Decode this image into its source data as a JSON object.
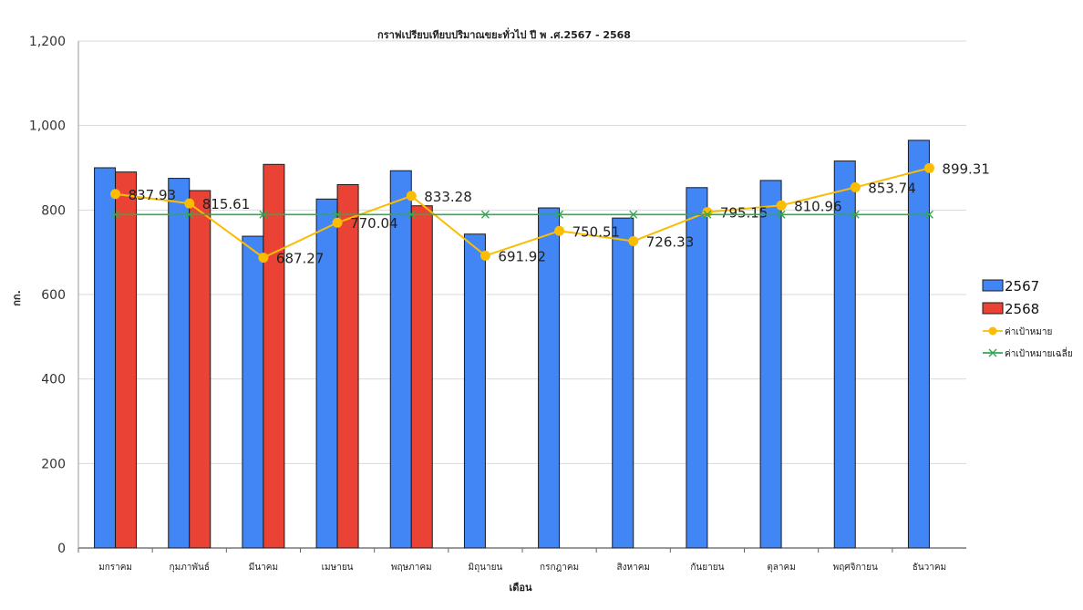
{
  "chart_data": {
    "type": "bar",
    "title": "กราฟเปรียบเทียบปริมาณขยะทั่วไป ปี พ .ศ.2567 - 2568",
    "xlabel": "เดือน",
    "ylabel": "กก.",
    "ylim": [
      0,
      1200
    ],
    "yticks": [
      "0",
      "200",
      "400",
      "600",
      "800",
      "1,000",
      "1,200"
    ],
    "ytick_values": [
      0,
      200,
      400,
      600,
      800,
      1000,
      1200
    ],
    "grid": true,
    "legend_position": "right",
    "categories": [
      "มกราคม",
      "กุมภาพันธ์",
      "มีนาคม",
      "เมษายน",
      "พฤษภาคม",
      "มิถุนายน",
      "กรกฎาคม",
      "สิงหาคม",
      "กันยายน",
      "ตุลาคม",
      "พฤศจิกายน",
      "ธันวาคม"
    ],
    "series": [
      {
        "name": "2567",
        "type": "bar",
        "color": "#4285f4",
        "values": [
          900,
          875,
          738,
          826,
          893,
          743,
          805,
          781,
          853,
          870,
          916,
          965
        ]
      },
      {
        "name": "2568",
        "type": "bar",
        "color": "#ea4335",
        "values": [
          890,
          846,
          908,
          860,
          810,
          null,
          null,
          null,
          null,
          null,
          null,
          null
        ]
      },
      {
        "name": "ค่าเป้าหมาย",
        "type": "line",
        "color": "#fbbc04",
        "marker": "circle",
        "values": [
          837.93,
          815.61,
          687.27,
          770.04,
          833.28,
          691.92,
          750.51,
          726.33,
          795.15,
          810.96,
          853.74,
          899.31
        ],
        "labels": [
          "837.93",
          "815.61",
          "687.27",
          "770.04",
          "833.28",
          "691.92",
          "750.51",
          "726.33",
          "795.15",
          "810.96",
          "853.74",
          "899.31"
        ]
      },
      {
        "name": "ค่าเป้าหมายเฉลี่ย",
        "type": "line",
        "color": "#34a853",
        "marker": "x",
        "values": [
          789.34,
          789.34,
          789.34,
          789.34,
          789.34,
          789.34,
          789.34,
          789.34,
          789.34,
          789.34,
          789.34,
          789.34
        ]
      }
    ]
  }
}
